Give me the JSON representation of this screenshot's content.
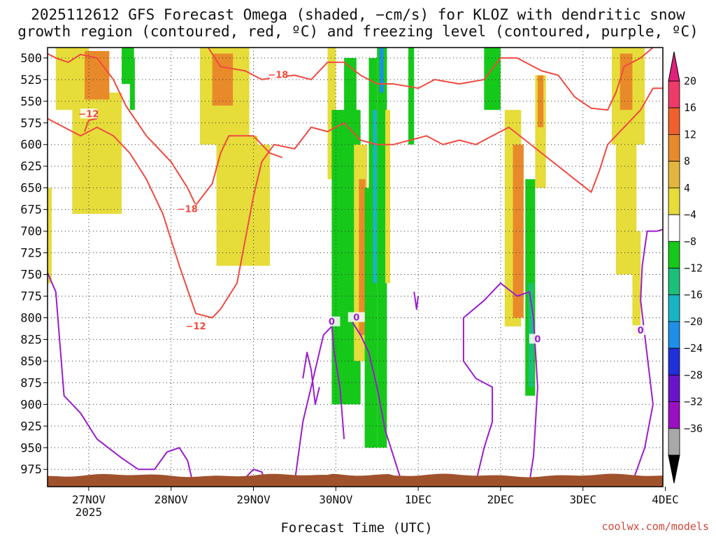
{
  "title_line1": "2025112612 GFS Forecast Omega (shaded, −cm/s) for KLOZ with dendritic snow",
  "title_line2": "growth region (contoured, red, ºC) and freezing level (contoured, purple, ºC)",
  "xlabel": "Forecast Time (UTC)",
  "credit": "coolwx.com/models",
  "colors": {
    "dgz": "#f04a40",
    "freezing": "#9b1ccf",
    "terrain": "#a0522d"
  },
  "chart_data": {
    "type": "heatmap",
    "x_range_days": [
      26.5,
      33.97
    ],
    "ylim_hpa": [
      488,
      995
    ],
    "y_ticks": [
      500,
      525,
      550,
      575,
      600,
      625,
      650,
      675,
      700,
      725,
      750,
      775,
      800,
      825,
      850,
      875,
      900,
      925,
      950,
      975
    ],
    "x_ticks": [
      {
        "day": 27,
        "label": "27NOV",
        "sub": "2025"
      },
      {
        "day": 28,
        "label": "28NOV",
        "sub": ""
      },
      {
        "day": 29,
        "label": "29NOV",
        "sub": ""
      },
      {
        "day": 30,
        "label": "30NOV",
        "sub": ""
      },
      {
        "day": 31,
        "label": "1DEC",
        "sub": ""
      },
      {
        "day": 32,
        "label": "2DEC",
        "sub": ""
      },
      {
        "day": 33,
        "label": "3DEC",
        "sub": ""
      },
      {
        "day": 34,
        "label": "4DEC",
        "sub": ""
      }
    ],
    "colorbar": {
      "labels": [
        "20",
        "16",
        "12",
        "8",
        "4",
        "−4",
        "−8",
        "−12",
        "−16",
        "−20",
        "−24",
        "−28",
        "−32",
        "−36"
      ],
      "colors": [
        "#ee3b68",
        "#f0602e",
        "#e88a2a",
        "#e2b63c",
        "#e6dc3a",
        "#ffffff",
        "#16c81a",
        "#1cbf7a",
        "#18b4c4",
        "#1e8fe8",
        "#2030d8",
        "#6a14c8",
        "#9a10c0",
        "#a8a8a8"
      ],
      "top_cap": "#e0207a",
      "bottom_cap": "#000000"
    },
    "omega_blobs": [
      {
        "d": [
          26.6,
          27.0
        ],
        "p": [
          488,
          560
        ],
        "c": "#e6dc3a"
      },
      {
        "d": [
          26.8,
          27.4
        ],
        "p": [
          540,
          680
        ],
        "c": "#e6dc3a"
      },
      {
        "d": [
          26.5,
          26.55
        ],
        "p": [
          650,
          760
        ],
        "c": "#e6dc3a"
      },
      {
        "d": [
          26.95,
          27.25
        ],
        "p": [
          492,
          548
        ],
        "c": "#e88a2a"
      },
      {
        "d": [
          27.4,
          27.55
        ],
        "p": [
          488,
          530
        ],
        "c": "#16c81a"
      },
      {
        "d": [
          27.5,
          27.56
        ],
        "p": [
          500,
          560
        ],
        "c": "#16c81a"
      },
      {
        "d": [
          28.35,
          28.95
        ],
        "p": [
          488,
          600
        ],
        "c": "#e6dc3a"
      },
      {
        "d": [
          28.55,
          29.05
        ],
        "p": [
          590,
          740
        ],
        "c": "#e6dc3a"
      },
      {
        "d": [
          28.5,
          28.75
        ],
        "p": [
          495,
          555
        ],
        "c": "#e88a2a"
      },
      {
        "d": [
          29.05,
          29.2
        ],
        "p": [
          600,
          740
        ],
        "c": "#e6dc3a"
      },
      {
        "d": [
          29.9,
          30.0
        ],
        "p": [
          488,
          640
        ],
        "c": "#e6dc3a"
      },
      {
        "d": [
          29.95,
          30.3
        ],
        "p": [
          560,
          900
        ],
        "c": "#16c81a"
      },
      {
        "d": [
          30.1,
          30.25
        ],
        "p": [
          500,
          860
        ],
        "c": "#16c81a"
      },
      {
        "d": [
          30.22,
          30.38
        ],
        "p": [
          600,
          850
        ],
        "c": "#e6dc3a"
      },
      {
        "d": [
          30.28,
          30.36
        ],
        "p": [
          640,
          820
        ],
        "c": "#e88a2a"
      },
      {
        "d": [
          30.35,
          30.45
        ],
        "p": [
          650,
          950
        ],
        "c": "#16c81a"
      },
      {
        "d": [
          30.4,
          30.5
        ],
        "p": [
          500,
          950
        ],
        "c": "#16c81a"
      },
      {
        "d": [
          30.45,
          30.5
        ],
        "p": [
          560,
          760
        ],
        "c": "#18b4c4"
      },
      {
        "d": [
          30.5,
          30.62
        ],
        "p": [
          488,
          950
        ],
        "c": "#16c81a"
      },
      {
        "d": [
          30.53,
          30.58
        ],
        "p": [
          488,
          540
        ],
        "c": "#1e8fe8"
      },
      {
        "d": [
          30.6,
          30.66
        ],
        "p": [
          560,
          760
        ],
        "c": "#e6dc3a"
      },
      {
        "d": [
          30.88,
          30.95
        ],
        "p": [
          488,
          600
        ],
        "c": "#16c81a"
      },
      {
        "d": [
          31.8,
          32.0
        ],
        "p": [
          488,
          560
        ],
        "c": "#16c81a"
      },
      {
        "d": [
          32.05,
          32.25
        ],
        "p": [
          560,
          810
        ],
        "c": "#e6dc3a"
      },
      {
        "d": [
          32.15,
          32.28
        ],
        "p": [
          600,
          800
        ],
        "c": "#e88a2a"
      },
      {
        "d": [
          32.3,
          32.42
        ],
        "p": [
          640,
          890
        ],
        "c": "#16c81a"
      },
      {
        "d": [
          32.34,
          32.4
        ],
        "p": [
          760,
          880
        ],
        "c": "#1cbf7a"
      },
      {
        "d": [
          32.42,
          32.55
        ],
        "p": [
          520,
          650
        ],
        "c": "#e6dc3a"
      },
      {
        "d": [
          32.45,
          32.52
        ],
        "p": [
          520,
          580
        ],
        "c": "#e88a2a"
      },
      {
        "d": [
          33.35,
          33.75
        ],
        "p": [
          488,
          600
        ],
        "c": "#e6dc3a"
      },
      {
        "d": [
          33.4,
          33.65
        ],
        "p": [
          560,
          750
        ],
        "c": "#e6dc3a"
      },
      {
        "d": [
          33.45,
          33.6
        ],
        "p": [
          495,
          560
        ],
        "c": "#e88a2a"
      },
      {
        "d": [
          33.6,
          33.7
        ],
        "p": [
          700,
          820
        ],
        "c": "#e6dc3a"
      }
    ],
    "dgz_contours": [
      {
        "label": "−18",
        "points": [
          [
            26.5,
            495
          ],
          [
            26.6,
            500
          ],
          [
            26.75,
            505
          ],
          [
            26.9,
            496
          ],
          [
            27.1,
            500
          ],
          [
            27.3,
            525
          ],
          [
            27.45,
            555
          ],
          [
            27.7,
            590
          ],
          [
            28.0,
            620
          ],
          [
            28.2,
            650
          ],
          [
            28.3,
            670
          ],
          [
            28.5,
            645
          ],
          [
            28.6,
            610
          ],
          [
            28.7,
            590
          ],
          [
            29.0,
            590
          ],
          [
            29.2,
            610
          ],
          [
            29.35,
            615
          ]
        ],
        "label_at": [
          28.2,
          675
        ]
      },
      {
        "label": "−18",
        "points": [
          [
            28.45,
            488
          ],
          [
            28.6,
            510
          ],
          [
            28.9,
            515
          ],
          [
            29.1,
            525
          ],
          [
            29.3,
            522
          ],
          [
            29.5,
            520
          ],
          [
            29.7,
            525
          ],
          [
            29.9,
            505
          ],
          [
            30.1,
            505
          ],
          [
            30.3,
            520
          ],
          [
            30.5,
            530
          ],
          [
            30.7,
            530
          ],
          [
            31.0,
            535
          ],
          [
            31.2,
            525
          ],
          [
            31.5,
            530
          ],
          [
            31.8,
            525
          ],
          [
            32.0,
            500
          ],
          [
            32.2,
            500
          ],
          [
            32.5,
            515
          ],
          [
            32.7,
            520
          ],
          [
            32.9,
            545
          ],
          [
            33.1,
            558
          ],
          [
            33.3,
            560
          ],
          [
            33.4,
            540
          ],
          [
            33.5,
            510
          ],
          [
            33.7,
            500
          ],
          [
            33.85,
            488
          ]
        ],
        "label_at": [
          29.3,
          520
        ]
      },
      {
        "label": "−12",
        "points": [
          [
            26.5,
            570
          ],
          [
            26.7,
            580
          ],
          [
            26.9,
            590
          ],
          [
            27.1,
            580
          ],
          [
            27.3,
            590
          ],
          [
            27.5,
            610
          ],
          [
            27.7,
            640
          ],
          [
            27.9,
            680
          ],
          [
            28.1,
            740
          ],
          [
            28.3,
            795
          ],
          [
            28.5,
            800
          ],
          [
            28.6,
            790
          ],
          [
            28.8,
            760
          ],
          [
            28.9,
            710
          ],
          [
            29.0,
            660
          ],
          [
            29.1,
            620
          ],
          [
            29.25,
            600
          ],
          [
            29.5,
            605
          ],
          [
            29.7,
            580
          ],
          [
            29.9,
            585
          ],
          [
            30.1,
            575
          ],
          [
            30.3,
            595
          ],
          [
            30.5,
            600
          ],
          [
            30.7,
            600
          ],
          [
            30.9,
            595
          ],
          [
            31.1,
            590
          ],
          [
            31.3,
            600
          ],
          [
            31.5,
            595
          ],
          [
            31.7,
            600
          ],
          [
            31.9,
            590
          ],
          [
            32.1,
            580
          ],
          [
            32.3,
            595
          ],
          [
            32.5,
            610
          ],
          [
            32.7,
            625
          ],
          [
            32.9,
            640
          ],
          [
            33.1,
            655
          ],
          [
            33.2,
            630
          ],
          [
            33.3,
            600
          ],
          [
            33.5,
            580
          ],
          [
            33.7,
            560
          ],
          [
            33.85,
            535
          ],
          [
            33.97,
            535
          ]
        ],
        "label_at": [
          28.3,
          810
        ]
      },
      {
        "label": "−12",
        "points": [
          [
            26.95,
            585
          ],
          [
            27.0,
            572
          ],
          [
            27.1,
            570
          ]
        ],
        "label_at": [
          27.0,
          565
        ]
      }
    ],
    "freezing_contours": [
      {
        "label": "0",
        "points": [
          [
            26.5,
            748
          ],
          [
            26.6,
            770
          ],
          [
            26.65,
            830
          ],
          [
            26.7,
            890
          ],
          [
            26.9,
            910
          ],
          [
            27.1,
            940
          ],
          [
            27.4,
            962
          ],
          [
            27.6,
            975
          ],
          [
            27.8,
            975
          ],
          [
            27.95,
            955
          ],
          [
            28.1,
            950
          ],
          [
            28.2,
            965
          ],
          [
            28.25,
            985
          ]
        ],
        "label_at": null
      },
      {
        "label": "0",
        "points": [
          [
            28.85,
            990
          ],
          [
            29.0,
            975
          ],
          [
            29.1,
            978
          ],
          [
            29.15,
            990
          ]
        ],
        "label_at": null
      },
      {
        "label": "0",
        "points": [
          [
            29.5,
            990
          ],
          [
            29.6,
            920
          ],
          [
            29.7,
            880
          ],
          [
            29.85,
            820
          ],
          [
            29.95,
            810
          ],
          [
            29.98,
            840
          ],
          [
            30.05,
            880
          ],
          [
            30.1,
            940
          ]
        ],
        "label_at": [
          29.95,
          805
        ]
      },
      {
        "label": "0",
        "points": [
          [
            29.6,
            870
          ],
          [
            29.65,
            840
          ],
          [
            29.7,
            860
          ],
          [
            29.75,
            900
          ],
          [
            29.8,
            880
          ]
        ],
        "label_at": null
      },
      {
        "label": "0",
        "points": [
          [
            30.2,
            805
          ],
          [
            30.3,
            820
          ],
          [
            30.4,
            840
          ],
          [
            30.5,
            880
          ],
          [
            30.6,
            930
          ],
          [
            30.7,
            960
          ],
          [
            30.8,
            990
          ]
        ],
        "label_at": [
          30.25,
          800
        ]
      },
      {
        "label": "0",
        "points": [
          [
            30.95,
            770
          ],
          [
            30.98,
            790
          ],
          [
            31.0,
            775
          ]
        ],
        "label_at": null
      },
      {
        "label": "0",
        "points": [
          [
            31.7,
            990
          ],
          [
            31.8,
            950
          ],
          [
            31.9,
            920
          ],
          [
            31.9,
            880
          ],
          [
            31.7,
            870
          ],
          [
            31.55,
            850
          ],
          [
            31.55,
            800
          ],
          [
            31.8,
            780
          ],
          [
            32.0,
            760
          ],
          [
            32.2,
            775
          ],
          [
            32.35,
            770
          ],
          [
            32.4,
            800
          ],
          [
            32.45,
            880
          ],
          [
            32.4,
            960
          ],
          [
            32.35,
            990
          ]
        ],
        "label_at": [
          32.45,
          825
        ]
      },
      {
        "label": "0",
        "points": [
          [
            33.6,
            990
          ],
          [
            33.75,
            950
          ],
          [
            33.85,
            900
          ],
          [
            33.8,
            860
          ],
          [
            33.75,
            820
          ],
          [
            33.7,
            780
          ],
          [
            33.72,
            740
          ],
          [
            33.78,
            700
          ],
          [
            33.9,
            700
          ],
          [
            33.97,
            698
          ]
        ],
        "label_at": [
          33.7,
          815
        ]
      }
    ]
  }
}
